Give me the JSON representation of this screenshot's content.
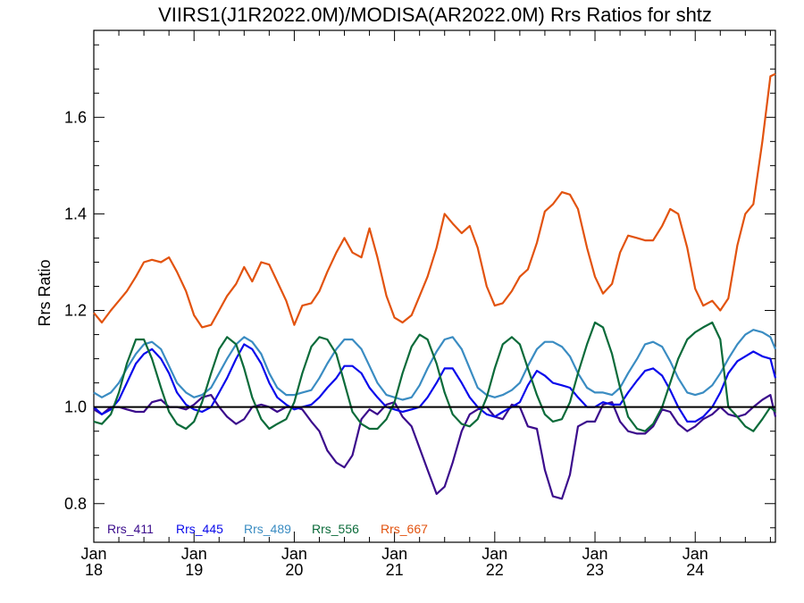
{
  "chart_data": {
    "type": "line",
    "title": "VIIRS1(J1R2022.0M)/MODISA(AR2022.0M)  Rrs Ratios for shtz",
    "xlabel": "",
    "ylabel": "Rrs Ratio",
    "xlim": [
      2018.0,
      2024.8
    ],
    "ylim": [
      0.72,
      1.78
    ],
    "y_ticks": [
      0.8,
      1.0,
      1.2,
      1.4,
      1.6
    ],
    "y_tick_labels": [
      "0.8",
      "1.0",
      "1.2",
      "1.4",
      "1.6"
    ],
    "x_ticks": [
      2018,
      2019,
      2020,
      2021,
      2022,
      2023,
      2024
    ],
    "x_tick_labels_top": [
      "Jan",
      "Jan",
      "Jan",
      "Jan",
      "Jan",
      "Jan",
      "Jan"
    ],
    "x_tick_labels_bottom": [
      "18",
      "19",
      "20",
      "21",
      "22",
      "23",
      "24"
    ],
    "reference_line": 1.0,
    "grid": false,
    "legend_position": "bottom-left",
    "series": [
      {
        "name": "Rrs_411",
        "color": "#3b0c8c",
        "x": [
          2018.0,
          2018.08,
          2018.17,
          2018.25,
          2018.33,
          2018.42,
          2018.5,
          2018.58,
          2018.67,
          2018.75,
          2018.83,
          2018.92,
          2019.0,
          2019.08,
          2019.17,
          2019.25,
          2019.33,
          2019.42,
          2019.5,
          2019.58,
          2019.67,
          2019.75,
          2019.83,
          2019.92,
          2020.0,
          2020.08,
          2020.17,
          2020.25,
          2020.33,
          2020.42,
          2020.5,
          2020.58,
          2020.67,
          2020.75,
          2020.83,
          2020.92,
          2021.0,
          2021.08,
          2021.17,
          2021.25,
          2021.33,
          2021.42,
          2021.5,
          2021.58,
          2021.67,
          2021.75,
          2021.83,
          2021.92,
          2022.0,
          2022.08,
          2022.17,
          2022.25,
          2022.33,
          2022.42,
          2022.5,
          2022.58,
          2022.67,
          2022.75,
          2022.83,
          2022.92,
          2023.0,
          2023.08,
          2023.17,
          2023.25,
          2023.33,
          2023.42,
          2023.5,
          2023.58,
          2023.67,
          2023.75,
          2023.83,
          2023.92,
          2024.0,
          2024.08,
          2024.17,
          2024.25,
          2024.33,
          2024.42,
          2024.5,
          2024.58,
          2024.67,
          2024.75,
          2024.8
        ],
        "values": [
          0.995,
          0.985,
          1.0,
          1.0,
          0.995,
          0.99,
          0.99,
          1.01,
          1.015,
          1.0,
          1.0,
          0.995,
          1.005,
          1.02,
          1.025,
          1.0,
          0.98,
          0.965,
          0.975,
          1.0,
          1.005,
          1.0,
          0.99,
          1.0,
          1.0,
          0.995,
          0.97,
          0.95,
          0.91,
          0.885,
          0.875,
          0.9,
          0.975,
          0.995,
          0.985,
          1.005,
          1.01,
          0.98,
          0.96,
          0.915,
          0.87,
          0.82,
          0.835,
          0.885,
          0.95,
          0.985,
          0.995,
          1.0,
          0.98,
          0.975,
          1.005,
          1.0,
          0.96,
          0.955,
          0.87,
          0.815,
          0.81,
          0.86,
          0.96,
          0.97,
          0.97,
          1.005,
          1.01,
          0.97,
          0.95,
          0.945,
          0.945,
          0.96,
          0.995,
          0.99,
          0.965,
          0.95,
          0.96,
          0.975,
          0.985,
          1.0,
          0.985,
          0.98,
          0.985,
          1.0,
          1.015,
          1.025,
          0.98
        ]
      },
      {
        "name": "Rrs_445",
        "color": "#0a0aeb",
        "x": [
          2018.0,
          2018.08,
          2018.17,
          2018.25,
          2018.33,
          2018.42,
          2018.5,
          2018.58,
          2018.67,
          2018.75,
          2018.83,
          2018.92,
          2019.0,
          2019.08,
          2019.17,
          2019.25,
          2019.33,
          2019.42,
          2019.5,
          2019.58,
          2019.67,
          2019.75,
          2019.83,
          2019.92,
          2020.0,
          2020.08,
          2020.17,
          2020.25,
          2020.33,
          2020.42,
          2020.5,
          2020.58,
          2020.67,
          2020.75,
          2020.83,
          2020.92,
          2021.0,
          2021.08,
          2021.17,
          2021.25,
          2021.33,
          2021.42,
          2021.5,
          2021.58,
          2021.67,
          2021.75,
          2021.83,
          2021.92,
          2022.0,
          2022.08,
          2022.17,
          2022.25,
          2022.33,
          2022.42,
          2022.5,
          2022.58,
          2022.67,
          2022.75,
          2022.83,
          2022.92,
          2023.0,
          2023.08,
          2023.17,
          2023.25,
          2023.33,
          2023.42,
          2023.5,
          2023.58,
          2023.67,
          2023.75,
          2023.83,
          2023.92,
          2024.0,
          2024.08,
          2024.17,
          2024.25,
          2024.33,
          2024.42,
          2024.5,
          2024.58,
          2024.67,
          2024.75,
          2024.8
        ],
        "values": [
          1.0,
          0.985,
          0.995,
          1.015,
          1.05,
          1.09,
          1.11,
          1.12,
          1.1,
          1.07,
          1.03,
          1.005,
          0.995,
          0.99,
          1.0,
          1.03,
          1.06,
          1.1,
          1.13,
          1.12,
          1.09,
          1.05,
          1.02,
          1.005,
          0.995,
          1.0,
          1.005,
          1.02,
          1.04,
          1.06,
          1.085,
          1.085,
          1.07,
          1.04,
          1.02,
          1.0,
          0.995,
          0.99,
          0.995,
          1.0,
          1.02,
          1.05,
          1.08,
          1.08,
          1.05,
          1.02,
          1.0,
          0.985,
          0.98,
          0.99,
          1.0,
          1.01,
          1.045,
          1.075,
          1.065,
          1.05,
          1.045,
          1.04,
          1.02,
          1.0,
          1.0,
          1.01,
          1.005,
          1.005,
          1.03,
          1.055,
          1.075,
          1.08,
          1.065,
          1.035,
          1.0,
          0.97,
          0.97,
          0.98,
          1.0,
          1.03,
          1.07,
          1.095,
          1.105,
          1.115,
          1.105,
          1.1,
          1.06
        ]
      },
      {
        "name": "Rrs_489",
        "color": "#3a8cc2",
        "x": [
          2018.0,
          2018.08,
          2018.17,
          2018.25,
          2018.33,
          2018.42,
          2018.5,
          2018.58,
          2018.67,
          2018.75,
          2018.83,
          2018.92,
          2019.0,
          2019.08,
          2019.17,
          2019.25,
          2019.33,
          2019.42,
          2019.5,
          2019.58,
          2019.67,
          2019.75,
          2019.83,
          2019.92,
          2020.0,
          2020.08,
          2020.17,
          2020.25,
          2020.33,
          2020.42,
          2020.5,
          2020.58,
          2020.67,
          2020.75,
          2020.83,
          2020.92,
          2021.0,
          2021.08,
          2021.17,
          2021.25,
          2021.33,
          2021.42,
          2021.5,
          2021.58,
          2021.67,
          2021.75,
          2021.83,
          2021.92,
          2022.0,
          2022.08,
          2022.17,
          2022.25,
          2022.33,
          2022.42,
          2022.5,
          2022.58,
          2022.67,
          2022.75,
          2022.83,
          2022.92,
          2023.0,
          2023.08,
          2023.17,
          2023.25,
          2023.33,
          2023.42,
          2023.5,
          2023.58,
          2023.67,
          2023.75,
          2023.83,
          2023.92,
          2024.0,
          2024.08,
          2024.17,
          2024.25,
          2024.33,
          2024.42,
          2024.5,
          2024.58,
          2024.67,
          2024.75,
          2024.8
        ],
        "values": [
          1.03,
          1.02,
          1.03,
          1.05,
          1.08,
          1.11,
          1.13,
          1.135,
          1.12,
          1.085,
          1.05,
          1.03,
          1.02,
          1.025,
          1.04,
          1.07,
          1.1,
          1.13,
          1.145,
          1.135,
          1.11,
          1.07,
          1.04,
          1.025,
          1.025,
          1.03,
          1.035,
          1.06,
          1.09,
          1.12,
          1.14,
          1.14,
          1.12,
          1.085,
          1.05,
          1.025,
          1.02,
          1.015,
          1.02,
          1.045,
          1.08,
          1.115,
          1.14,
          1.145,
          1.12,
          1.08,
          1.04,
          1.025,
          1.02,
          1.025,
          1.035,
          1.05,
          1.085,
          1.12,
          1.135,
          1.135,
          1.125,
          1.105,
          1.07,
          1.04,
          1.03,
          1.03,
          1.025,
          1.04,
          1.07,
          1.1,
          1.13,
          1.135,
          1.125,
          1.095,
          1.06,
          1.03,
          1.025,
          1.03,
          1.045,
          1.07,
          1.1,
          1.13,
          1.15,
          1.16,
          1.155,
          1.145,
          1.12
        ]
      },
      {
        "name": "Rrs_556",
        "color": "#0b6b3a",
        "x": [
          2018.0,
          2018.08,
          2018.17,
          2018.25,
          2018.33,
          2018.42,
          2018.5,
          2018.58,
          2018.67,
          2018.75,
          2018.83,
          2018.92,
          2019.0,
          2019.08,
          2019.17,
          2019.25,
          2019.33,
          2019.42,
          2019.5,
          2019.58,
          2019.67,
          2019.75,
          2019.83,
          2019.92,
          2020.0,
          2020.08,
          2020.17,
          2020.25,
          2020.33,
          2020.42,
          2020.5,
          2020.58,
          2020.67,
          2020.75,
          2020.83,
          2020.92,
          2021.0,
          2021.08,
          2021.17,
          2021.25,
          2021.33,
          2021.42,
          2021.5,
          2021.58,
          2021.67,
          2021.75,
          2021.83,
          2021.92,
          2022.0,
          2022.08,
          2022.17,
          2022.25,
          2022.33,
          2022.42,
          2022.5,
          2022.58,
          2022.67,
          2022.75,
          2022.83,
          2022.92,
          2023.0,
          2023.08,
          2023.17,
          2023.25,
          2023.33,
          2023.42,
          2023.5,
          2023.58,
          2023.67,
          2023.75,
          2023.83,
          2023.92,
          2024.0,
          2024.08,
          2024.17,
          2024.25,
          2024.33,
          2024.42,
          2024.5,
          2024.58,
          2024.67,
          2024.75,
          2024.8
        ],
        "values": [
          0.97,
          0.965,
          0.985,
          1.03,
          1.09,
          1.14,
          1.14,
          1.1,
          1.04,
          0.99,
          0.965,
          0.955,
          0.97,
          1.01,
          1.07,
          1.12,
          1.145,
          1.13,
          1.08,
          1.02,
          0.975,
          0.955,
          0.965,
          0.975,
          1.01,
          1.07,
          1.125,
          1.145,
          1.14,
          1.11,
          1.05,
          0.99,
          0.965,
          0.955,
          0.955,
          0.975,
          1.01,
          1.07,
          1.125,
          1.15,
          1.14,
          1.09,
          1.03,
          0.985,
          0.965,
          0.96,
          0.975,
          1.02,
          1.08,
          1.13,
          1.145,
          1.13,
          1.08,
          1.025,
          0.985,
          0.97,
          0.975,
          1.01,
          1.07,
          1.13,
          1.175,
          1.165,
          1.11,
          1.04,
          0.98,
          0.955,
          0.95,
          0.965,
          1.0,
          1.05,
          1.1,
          1.14,
          1.155,
          1.165,
          1.175,
          1.14,
          1.0,
          0.98,
          0.96,
          0.95,
          0.975,
          1.0,
          0.99
        ]
      },
      {
        "name": "Rrs_667",
        "color": "#e2530f",
        "x": [
          2018.0,
          2018.08,
          2018.17,
          2018.25,
          2018.33,
          2018.42,
          2018.5,
          2018.58,
          2018.67,
          2018.75,
          2018.83,
          2018.92,
          2019.0,
          2019.08,
          2019.17,
          2019.25,
          2019.33,
          2019.42,
          2019.5,
          2019.58,
          2019.67,
          2019.75,
          2019.83,
          2019.92,
          2020.0,
          2020.08,
          2020.17,
          2020.25,
          2020.33,
          2020.42,
          2020.5,
          2020.58,
          2020.67,
          2020.75,
          2020.83,
          2020.92,
          2021.0,
          2021.08,
          2021.17,
          2021.25,
          2021.33,
          2021.42,
          2021.5,
          2021.58,
          2021.67,
          2021.75,
          2021.83,
          2021.92,
          2022.0,
          2022.08,
          2022.17,
          2022.25,
          2022.33,
          2022.42,
          2022.5,
          2022.58,
          2022.67,
          2022.75,
          2022.83,
          2022.92,
          2023.0,
          2023.08,
          2023.17,
          2023.25,
          2023.33,
          2023.42,
          2023.5,
          2023.58,
          2023.67,
          2023.75,
          2023.83,
          2023.92,
          2024.0,
          2024.08,
          2024.17,
          2024.25,
          2024.33,
          2024.42,
          2024.5,
          2024.58,
          2024.67,
          2024.75,
          2024.8
        ],
        "values": [
          1.195,
          1.175,
          1.2,
          1.22,
          1.24,
          1.27,
          1.3,
          1.305,
          1.3,
          1.31,
          1.28,
          1.24,
          1.19,
          1.165,
          1.17,
          1.2,
          1.23,
          1.255,
          1.29,
          1.26,
          1.3,
          1.295,
          1.26,
          1.22,
          1.17,
          1.21,
          1.215,
          1.24,
          1.28,
          1.32,
          1.35,
          1.32,
          1.31,
          1.37,
          1.31,
          1.23,
          1.185,
          1.175,
          1.19,
          1.23,
          1.27,
          1.33,
          1.4,
          1.38,
          1.36,
          1.375,
          1.33,
          1.25,
          1.21,
          1.215,
          1.24,
          1.27,
          1.285,
          1.34,
          1.405,
          1.42,
          1.445,
          1.44,
          1.41,
          1.33,
          1.27,
          1.235,
          1.255,
          1.32,
          1.355,
          1.35,
          1.345,
          1.345,
          1.375,
          1.41,
          1.4,
          1.33,
          1.245,
          1.21,
          1.22,
          1.2,
          1.225,
          1.335,
          1.4,
          1.42,
          1.55,
          1.685,
          1.69
        ]
      }
    ]
  }
}
